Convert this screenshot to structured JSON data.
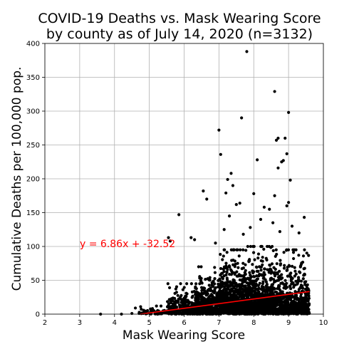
{
  "chart_data": {
    "type": "scatter",
    "title_line1": "COVID-19 Deaths vs. Mask Wearing Score",
    "title_line2": "by county as of July 14, 2020 (n=3132)",
    "xlabel": "Mask Wearing Score",
    "ylabel": "Cumulative Deaths per 100,000 pop.",
    "xlim": [
      2,
      10
    ],
    "ylim": [
      0,
      400
    ],
    "xticks": [
      "2",
      "3",
      "4",
      "5",
      "6",
      "7",
      "8",
      "9",
      "10"
    ],
    "yticks": [
      "0",
      "50",
      "100",
      "150",
      "200",
      "250",
      "300",
      "350",
      "400"
    ],
    "grid": true,
    "point_color": "#000000",
    "fit_color": "#ff0000",
    "fit_line": {
      "slope": 6.86,
      "intercept": -32.52,
      "x_range": [
        4.74,
        9.6
      ]
    },
    "fit_label": "y = 6.86x + -32.52",
    "n_points": 3132,
    "outliers": [
      [
        7.8,
        388
      ],
      [
        8.6,
        329
      ],
      [
        9.0,
        298
      ],
      [
        7.65,
        290
      ],
      [
        7.0,
        272
      ],
      [
        8.9,
        260
      ],
      [
        8.7,
        260
      ],
      [
        8.65,
        257
      ],
      [
        8.95,
        237
      ],
      [
        7.05,
        236
      ],
      [
        8.1,
        228
      ],
      [
        8.85,
        227
      ],
      [
        8.8,
        225
      ],
      [
        8.7,
        216
      ],
      [
        7.35,
        208
      ],
      [
        7.25,
        199
      ],
      [
        9.05,
        198
      ],
      [
        6.55,
        182
      ],
      [
        7.2,
        179
      ],
      [
        8.0,
        178
      ],
      [
        8.6,
        175
      ],
      [
        6.65,
        170
      ],
      [
        7.4,
        190
      ],
      [
        9.0,
        165
      ],
      [
        8.95,
        160
      ],
      [
        7.5,
        162
      ],
      [
        7.6,
        164
      ],
      [
        8.3,
        158
      ],
      [
        8.45,
        155
      ],
      [
        5.85,
        147
      ],
      [
        7.3,
        145
      ],
      [
        9.45,
        143
      ],
      [
        8.2,
        140
      ],
      [
        9.1,
        130
      ],
      [
        6.2,
        113
      ],
      [
        5.55,
        113
      ],
      [
        6.3,
        110
      ],
      [
        8.75,
        122
      ],
      [
        7.9,
        128
      ],
      [
        7.7,
        118
      ],
      [
        8.55,
        135
      ],
      [
        9.3,
        120
      ],
      [
        7.15,
        125
      ],
      [
        6.9,
        105
      ],
      [
        5.6,
        108
      ]
    ],
    "dense_ranges": [
      {
        "x": [
          4.7,
          5.5
        ],
        "count": 60,
        "y_max": 12
      },
      {
        "x": [
          5.5,
          6.3
        ],
        "count": 260,
        "y_max": 45
      },
      {
        "x": [
          6.3,
          7.0
        ],
        "count": 520,
        "y_max": 70
      },
      {
        "x": [
          7.0,
          7.8
        ],
        "count": 820,
        "y_max": 95
      },
      {
        "x": [
          7.8,
          8.6
        ],
        "count": 800,
        "y_max": 100
      },
      {
        "x": [
          8.6,
          9.6
        ],
        "count": 620,
        "y_max": 95
      }
    ],
    "low_scattered": [
      [
        3.6,
        0
      ],
      [
        4.2,
        0
      ],
      [
        4.5,
        1
      ],
      [
        4.6,
        9
      ],
      [
        4.75,
        11
      ]
    ]
  }
}
